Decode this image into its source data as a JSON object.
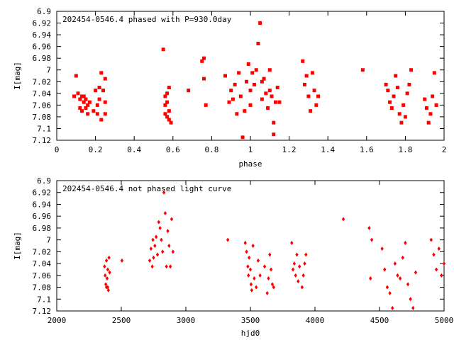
{
  "chart_data": [
    {
      "type": "scatter",
      "title": "202454-0546.4 phased with P=930.0day",
      "xlabel": "phase",
      "ylabel": "I[mag]",
      "xlim": [
        0,
        2
      ],
      "ylim": [
        7.12,
        6.9
      ],
      "y_inverted": true,
      "grid": false,
      "xticks": [
        "0",
        "0.2",
        "0.4",
        "0.6",
        "0.8",
        "1",
        "1.2",
        "1.4",
        "1.6",
        "1.8",
        "2"
      ],
      "yticks": [
        "6.9",
        "6.92",
        "6.94",
        "6.96",
        "6.98",
        "7",
        "7.02",
        "7.04",
        "7.06",
        "7.08",
        "7.1",
        "7.12"
      ],
      "color": "#ff0000",
      "marker": "square",
      "series": [
        {
          "x": [
            0.09,
            0.1,
            0.11,
            0.12,
            0.12,
            0.13,
            0.13,
            0.14,
            0.14,
            0.15,
            0.15,
            0.16,
            0.16,
            0.17,
            0.19,
            0.2,
            0.21,
            0.21,
            0.22,
            0.22,
            0.23,
            0.23,
            0.24,
            0.25,
            0.25,
            0.25,
            0.55,
            0.56,
            0.56,
            0.56,
            0.57,
            0.57,
            0.57,
            0.58,
            0.58,
            0.58,
            0.59,
            0.68,
            0.75,
            0.76,
            0.76,
            0.77,
            0.87,
            0.89,
            0.9,
            0.91,
            0.92,
            0.93,
            0.94,
            0.95,
            0.96,
            0.97,
            0.98,
            0.99,
            1.0,
            1.0,
            1.01,
            1.02,
            1.03,
            1.04,
            1.05,
            1.06,
            1.06,
            1.07,
            1.08,
            1.09,
            1.1,
            1.1,
            1.11,
            1.12,
            1.12,
            1.13,
            1.14,
            1.15,
            1.27,
            1.28,
            1.29,
            1.3,
            1.31,
            1.32,
            1.33,
            1.34,
            1.35,
            1.58,
            1.7,
            1.71,
            1.72,
            1.73,
            1.74,
            1.75,
            1.76,
            1.77,
            1.78,
            1.79,
            1.8,
            1.81,
            1.82,
            1.83,
            1.9,
            1.91,
            1.92,
            1.93,
            1.94,
            1.95,
            1.96
          ],
          "y": [
            7.045,
            7.01,
            7.04,
            7.05,
            7.065,
            7.045,
            7.07,
            7.045,
            7.055,
            7.05,
            7.065,
            7.06,
            7.075,
            7.055,
            7.07,
            7.035,
            7.06,
            7.075,
            7.05,
            7.03,
            7.085,
            7.005,
            7.035,
            7.015,
            7.055,
            7.075,
            6.965,
            7.075,
            7.06,
            7.045,
            7.08,
            7.055,
            7.04,
            7.085,
            7.07,
            7.03,
            7.09,
            7.035,
            6.985,
            6.98,
            7.015,
            7.06,
            7.01,
            7.055,
            7.035,
            7.05,
            7.025,
            7.075,
            7.005,
            7.045,
            7.115,
            7.07,
            7.02,
            6.99,
            7.035,
            7.06,
            7.005,
            7.025,
            7.0,
            6.955,
            6.92,
            7.05,
            7.02,
            7.015,
            7.04,
            7.065,
            7.0,
            7.035,
            7.045,
            7.09,
            7.11,
            7.055,
            7.03,
            7.055,
            6.985,
            7.025,
            7.01,
            7.045,
            7.07,
            7.005,
            7.035,
            7.06,
            7.045,
            7.0,
            7.025,
            7.035,
            7.055,
            7.065,
            7.045,
            7.01,
            7.03,
            7.075,
            7.09,
            7.06,
            7.08,
            7.04,
            7.025,
            7.0,
            7.05,
            7.065,
            7.09,
            7.075,
            7.045,
            7.005,
            7.06
          ]
        }
      ]
    },
    {
      "type": "scatter",
      "title": "202454-0546.4 not phased light curve",
      "xlabel": "hjd0",
      "ylabel": "I[mag]",
      "xlim": [
        2000,
        5000
      ],
      "ylim": [
        7.12,
        6.9
      ],
      "y_inverted": true,
      "grid": false,
      "xticks": [
        "2000",
        "2500",
        "3000",
        "3500",
        "4000",
        "4500",
        "5000"
      ],
      "yticks": [
        "6.9",
        "6.92",
        "6.94",
        "6.96",
        "6.98",
        "7",
        "7.02",
        "7.04",
        "7.06",
        "7.08",
        "7.1",
        "7.12"
      ],
      "color": "#ff0000",
      "marker": "diamond",
      "series": [
        {
          "x": [
            2370,
            2375,
            2380,
            2385,
            2385,
            2390,
            2395,
            2395,
            2400,
            2405,
            2410,
            2505,
            2720,
            2730,
            2740,
            2745,
            2750,
            2760,
            2770,
            2780,
            2790,
            2800,
            2810,
            2820,
            2830,
            2840,
            2850,
            2860,
            2870,
            2880,
            2890,
            2900,
            3325,
            3460,
            3470,
            3480,
            3485,
            3490,
            3500,
            3505,
            3510,
            3520,
            3530,
            3545,
            3560,
            3575,
            3610,
            3630,
            3640,
            3650,
            3660,
            3670,
            3680,
            3820,
            3830,
            3840,
            3850,
            3860,
            3870,
            3880,
            3900,
            3910,
            3920,
            3930,
            4220,
            4420,
            4430,
            4440,
            4520,
            4540,
            4560,
            4580,
            4600,
            4620,
            4640,
            4660,
            4680,
            4700,
            4720,
            4740,
            4760,
            4780,
            4900,
            4920,
            4940,
            4960,
            4980,
            5000
          ],
          "y": [
            7.045,
            7.06,
            7.075,
            7.08,
            7.035,
            7.065,
            7.05,
            7.08,
            7.085,
            7.03,
            7.055,
            7.035,
            7.035,
            7.015,
            7.045,
            7.0,
            7.03,
            7.01,
            6.995,
            7.025,
            6.97,
            6.98,
            7.0,
            7.02,
            6.92,
            6.955,
            7.045,
            6.985,
            7.01,
            7.045,
            6.965,
            7.02,
            7.0,
            7.005,
            7.02,
            7.045,
            7.06,
            7.03,
            7.05,
            7.075,
            7.085,
            7.01,
            7.065,
            7.08,
            7.035,
            7.06,
            7.045,
            7.09,
            7.065,
            7.025,
            7.05,
            7.075,
            7.08,
            7.005,
            7.05,
            7.04,
            7.06,
            7.025,
            7.07,
            7.045,
            7.08,
            7.06,
            7.04,
            7.025,
            6.965,
            6.98,
            7.065,
            7.0,
            7.015,
            7.05,
            7.08,
            7.09,
            7.115,
            7.04,
            7.06,
            7.065,
            7.03,
            7.005,
            7.075,
            7.1,
            7.115,
            7.055,
            7.0,
            7.025,
            7.05,
            7.015,
            7.06,
            7.04
          ]
        }
      ]
    }
  ]
}
